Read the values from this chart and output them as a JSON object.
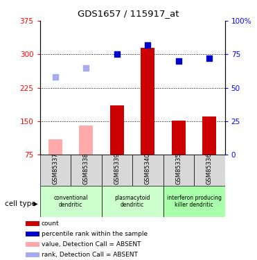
{
  "title": "GDS1657 / 115917_at",
  "samples": [
    "GSM85337",
    "GSM85338",
    "GSM85339",
    "GSM85340",
    "GSM85335",
    "GSM85336"
  ],
  "count_values": [
    null,
    null,
    185,
    315,
    152,
    160
  ],
  "count_absent": [
    110,
    140,
    null,
    null,
    null,
    null
  ],
  "rank_pct_values": [
    null,
    null,
    75,
    82,
    70,
    72
  ],
  "rank_pct_absent": [
    58,
    65,
    null,
    null,
    null,
    null
  ],
  "ylim_left": [
    75,
    375
  ],
  "ylim_right": [
    0,
    100
  ],
  "yticks_left": [
    75,
    150,
    225,
    300,
    375
  ],
  "yticks_right": [
    0,
    25,
    50,
    75,
    100
  ],
  "ytick_labels_right": [
    "0",
    "25",
    "50",
    "75",
    "100%"
  ],
  "bar_color_present": "#cc0000",
  "bar_color_absent": "#ffaaaa",
  "rank_color_present": "#0000cc",
  "rank_color_absent": "#aaaaee",
  "plot_bg": "#ffffff",
  "cell_type_label": "cell type",
  "legend": [
    {
      "label": "count",
      "color": "#cc0000"
    },
    {
      "label": "percentile rank within the sample",
      "color": "#0000cc"
    },
    {
      "label": "value, Detection Call = ABSENT",
      "color": "#ffaaaa"
    },
    {
      "label": "rank, Detection Call = ABSENT",
      "color": "#aaaaee"
    }
  ],
  "bar_width": 0.45,
  "rank_marker_size": 40,
  "group_info": [
    {
      "start": 0,
      "end": 1,
      "label": "conventional\ndendritic",
      "color": "#ccffcc"
    },
    {
      "start": 2,
      "end": 3,
      "label": "plasmacytoid\ndendritic",
      "color": "#ccffcc"
    },
    {
      "start": 4,
      "end": 5,
      "label": "interferon producing\nkiller dendritic",
      "color": "#aaffaa"
    }
  ]
}
